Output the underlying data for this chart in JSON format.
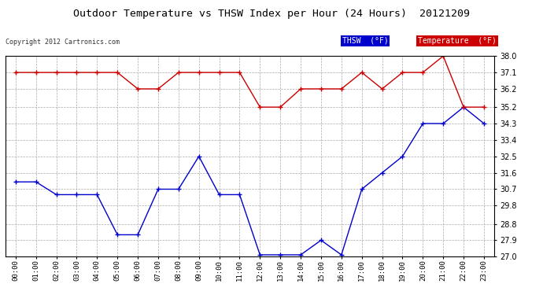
{
  "title": "Outdoor Temperature vs THSW Index per Hour (24 Hours)  20121209",
  "copyright": "Copyright 2012 Cartronics.com",
  "hours": [
    "00:00",
    "01:00",
    "02:00",
    "03:00",
    "04:00",
    "05:00",
    "06:00",
    "07:00",
    "08:00",
    "09:00",
    "10:00",
    "11:00",
    "12:00",
    "13:00",
    "14:00",
    "15:00",
    "16:00",
    "17:00",
    "18:00",
    "19:00",
    "20:00",
    "21:00",
    "22:00",
    "23:00"
  ],
  "thsw": [
    31.1,
    31.1,
    30.4,
    30.4,
    30.4,
    28.2,
    28.2,
    30.7,
    30.7,
    32.5,
    30.4,
    30.4,
    27.1,
    27.1,
    27.1,
    27.9,
    27.1,
    30.7,
    31.6,
    32.5,
    34.3,
    34.3,
    35.2,
    34.3
  ],
  "temperature": [
    37.1,
    37.1,
    37.1,
    37.1,
    37.1,
    37.1,
    36.2,
    36.2,
    37.1,
    37.1,
    37.1,
    37.1,
    35.2,
    35.2,
    36.2,
    36.2,
    36.2,
    37.1,
    36.2,
    37.1,
    37.1,
    38.0,
    35.2,
    35.2
  ],
  "thsw_color": "#0000cc",
  "temp_color": "#cc0000",
  "background_color": "#ffffff",
  "grid_color": "#aaaaaa",
  "ylim_min": 27.0,
  "ylim_max": 38.0,
  "yticks": [
    27.0,
    27.9,
    28.8,
    29.8,
    30.7,
    31.6,
    32.5,
    33.4,
    34.3,
    35.2,
    36.2,
    37.1,
    38.0
  ],
  "legend_thsw_bg": "#0000cc",
  "legend_temp_bg": "#cc0000",
  "legend_thsw_text": "THSW  (°F)",
  "legend_temp_text": "Temperature  (°F)"
}
